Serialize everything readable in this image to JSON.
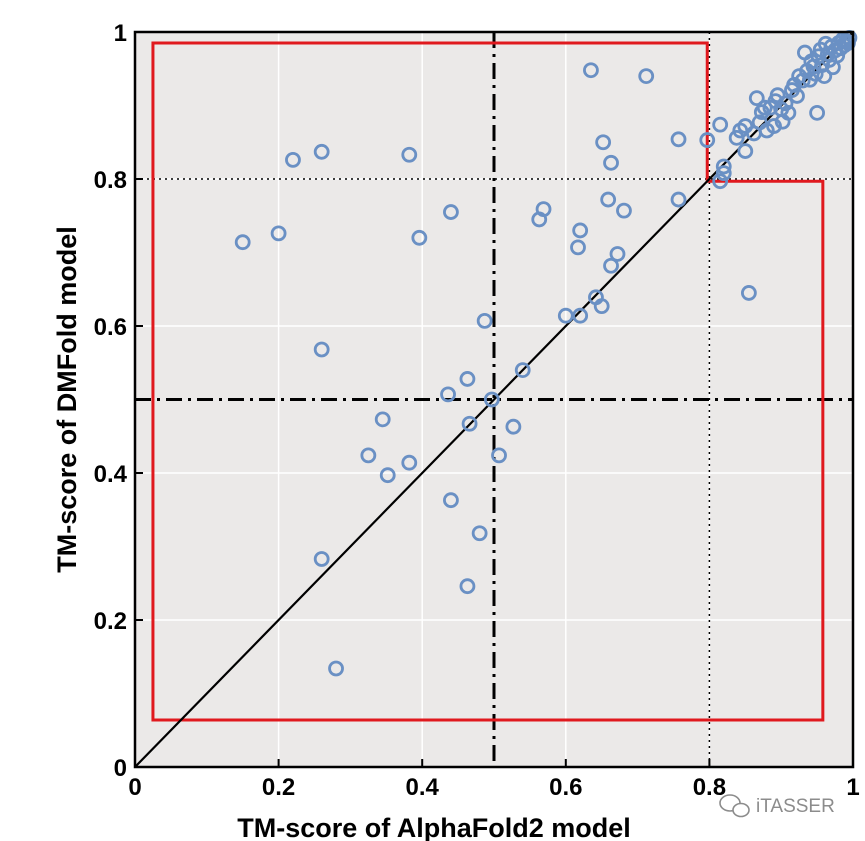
{
  "chart_data": {
    "type": "scatter",
    "title": "",
    "xlabel": "TM-score of AlphaFold2 model",
    "ylabel": "TM-score of DMFold model",
    "xlim": [
      0,
      1
    ],
    "ylim": [
      0,
      1
    ],
    "xticks": [
      "0",
      "0.2",
      "0.4",
      "0.6",
      "0.8",
      "1"
    ],
    "yticks": [
      "0",
      "0.2",
      "0.4",
      "0.6",
      "0.8",
      "1"
    ],
    "grid": true,
    "background_color": "#ebe9e8",
    "marker_color": "#6a90c4",
    "region_color": "#e0191e",
    "diagonal_line": {
      "from": [
        0,
        0
      ],
      "to": [
        1,
        1
      ],
      "color": "#000000"
    },
    "reference_lines": [
      {
        "orientation": "vertical",
        "value": 0.5,
        "style": "dash-dot"
      },
      {
        "orientation": "horizontal",
        "value": 0.5,
        "style": "dash-dot"
      },
      {
        "orientation": "vertical",
        "value": 0.8,
        "style": "dotted"
      },
      {
        "orientation": "horizontal",
        "value": 0.8,
        "style": "dotted"
      }
    ],
    "highlight_region": [
      [
        0.025,
        0.985
      ],
      [
        0.797,
        0.985
      ],
      [
        0.797,
        0.797
      ],
      [
        0.958,
        0.797
      ],
      [
        0.958,
        0.064
      ],
      [
        0.025,
        0.064
      ]
    ],
    "points": [
      {
        "x": 0.15,
        "y": 0.714
      },
      {
        "x": 0.2,
        "y": 0.726
      },
      {
        "x": 0.22,
        "y": 0.826
      },
      {
        "x": 0.26,
        "y": 0.837
      },
      {
        "x": 0.26,
        "y": 0.568
      },
      {
        "x": 0.26,
        "y": 0.283
      },
      {
        "x": 0.28,
        "y": 0.134
      },
      {
        "x": 0.325,
        "y": 0.424
      },
      {
        "x": 0.345,
        "y": 0.473
      },
      {
        "x": 0.352,
        "y": 0.397
      },
      {
        "x": 0.382,
        "y": 0.414
      },
      {
        "x": 0.382,
        "y": 0.833
      },
      {
        "x": 0.396,
        "y": 0.72
      },
      {
        "x": 0.436,
        "y": 0.507
      },
      {
        "x": 0.44,
        "y": 0.363
      },
      {
        "x": 0.44,
        "y": 0.755
      },
      {
        "x": 0.463,
        "y": 0.528
      },
      {
        "x": 0.466,
        "y": 0.467
      },
      {
        "x": 0.463,
        "y": 0.246
      },
      {
        "x": 0.48,
        "y": 0.318
      },
      {
        "x": 0.487,
        "y": 0.607
      },
      {
        "x": 0.497,
        "y": 0.5
      },
      {
        "x": 0.507,
        "y": 0.424
      },
      {
        "x": 0.527,
        "y": 0.463
      },
      {
        "x": 0.54,
        "y": 0.54
      },
      {
        "x": 0.563,
        "y": 0.745
      },
      {
        "x": 0.569,
        "y": 0.759
      },
      {
        "x": 0.6,
        "y": 0.614
      },
      {
        "x": 0.62,
        "y": 0.614
      },
      {
        "x": 0.617,
        "y": 0.707
      },
      {
        "x": 0.62,
        "y": 0.73
      },
      {
        "x": 0.635,
        "y": 0.948
      },
      {
        "x": 0.642,
        "y": 0.639
      },
      {
        "x": 0.65,
        "y": 0.627
      },
      {
        "x": 0.652,
        "y": 0.85
      },
      {
        "x": 0.659,
        "y": 0.772
      },
      {
        "x": 0.663,
        "y": 0.822
      },
      {
        "x": 0.663,
        "y": 0.682
      },
      {
        "x": 0.672,
        "y": 0.698
      },
      {
        "x": 0.681,
        "y": 0.757
      },
      {
        "x": 0.712,
        "y": 0.94
      },
      {
        "x": 0.757,
        "y": 0.854
      },
      {
        "x": 0.757,
        "y": 0.772
      },
      {
        "x": 0.797,
        "y": 0.853
      },
      {
        "x": 0.815,
        "y": 0.797
      },
      {
        "x": 0.815,
        "y": 0.874
      },
      {
        "x": 0.82,
        "y": 0.808
      },
      {
        "x": 0.82,
        "y": 0.817
      },
      {
        "x": 0.838,
        "y": 0.856
      },
      {
        "x": 0.843,
        "y": 0.866
      },
      {
        "x": 0.85,
        "y": 0.872
      },
      {
        "x": 0.855,
        "y": 0.645
      },
      {
        "x": 0.85,
        "y": 0.838
      },
      {
        "x": 0.862,
        "y": 0.862
      },
      {
        "x": 0.866,
        "y": 0.91
      },
      {
        "x": 0.87,
        "y": 0.877
      },
      {
        "x": 0.873,
        "y": 0.891
      },
      {
        "x": 0.877,
        "y": 0.897
      },
      {
        "x": 0.88,
        "y": 0.866
      },
      {
        "x": 0.885,
        "y": 0.897
      },
      {
        "x": 0.89,
        "y": 0.872
      },
      {
        "x": 0.892,
        "y": 0.906
      },
      {
        "x": 0.895,
        "y": 0.914
      },
      {
        "x": 0.9,
        "y": 0.895
      },
      {
        "x": 0.902,
        "y": 0.878
      },
      {
        "x": 0.906,
        "y": 0.903
      },
      {
        "x": 0.91,
        "y": 0.89
      },
      {
        "x": 0.915,
        "y": 0.921
      },
      {
        "x": 0.918,
        "y": 0.928
      },
      {
        "x": 0.922,
        "y": 0.913
      },
      {
        "x": 0.925,
        "y": 0.94
      },
      {
        "x": 0.93,
        "y": 0.934
      },
      {
        "x": 0.933,
        "y": 0.972
      },
      {
        "x": 0.936,
        "y": 0.947
      },
      {
        "x": 0.94,
        "y": 0.935
      },
      {
        "x": 0.942,
        "y": 0.96
      },
      {
        "x": 0.945,
        "y": 0.953
      },
      {
        "x": 0.948,
        "y": 0.943
      },
      {
        "x": 0.95,
        "y": 0.89
      },
      {
        "x": 0.952,
        "y": 0.967
      },
      {
        "x": 0.955,
        "y": 0.976
      },
      {
        "x": 0.957,
        "y": 0.955
      },
      {
        "x": 0.96,
        "y": 0.94
      },
      {
        "x": 0.962,
        "y": 0.984
      },
      {
        "x": 0.965,
        "y": 0.97
      },
      {
        "x": 0.967,
        "y": 0.962
      },
      {
        "x": 0.97,
        "y": 0.98
      },
      {
        "x": 0.972,
        "y": 0.952
      },
      {
        "x": 0.975,
        "y": 0.975
      },
      {
        "x": 0.978,
        "y": 0.968
      },
      {
        "x": 0.98,
        "y": 0.985
      },
      {
        "x": 0.983,
        "y": 0.978
      },
      {
        "x": 0.986,
        "y": 0.99
      },
      {
        "x": 0.988,
        "y": 0.982
      },
      {
        "x": 0.99,
        "y": 0.988
      },
      {
        "x": 0.993,
        "y": 0.985
      },
      {
        "x": 0.995,
        "y": 0.992
      }
    ]
  },
  "watermark": {
    "text": "iTASSER",
    "icon": "wechat-icon"
  }
}
